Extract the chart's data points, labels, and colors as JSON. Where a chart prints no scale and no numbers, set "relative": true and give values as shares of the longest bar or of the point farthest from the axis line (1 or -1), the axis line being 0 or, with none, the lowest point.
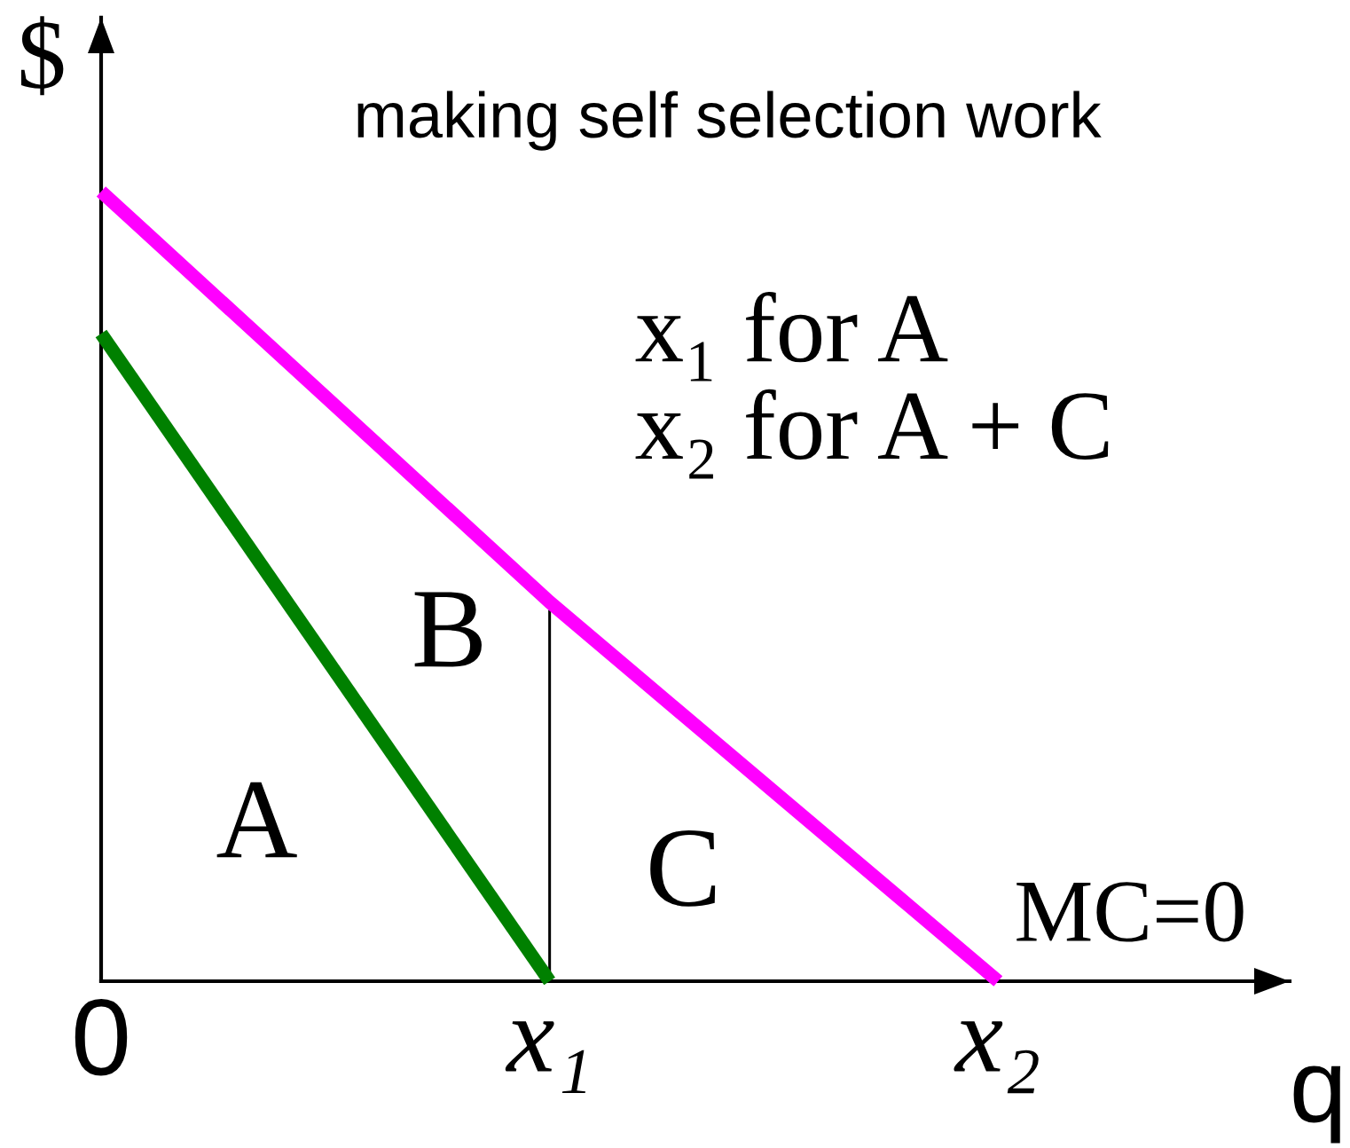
{
  "chart_data": {
    "type": "line",
    "title": "making self selection work",
    "xlabel": "q",
    "ylabel": "$",
    "relative": true,
    "categories": [
      "0",
      "x₁",
      "x₂"
    ],
    "series": [
      {
        "color": "#008000",
        "values": [
          0.82,
          0,
          null
        ]
      },
      {
        "color": "#ff00ff",
        "values": [
          1,
          0.48,
          0
        ]
      },
      {
        "type": "bar",
        "color": "#000000",
        "values": [
          null,
          0.47,
          null
        ]
      }
    ],
    "annotations": [
      "A",
      "B",
      "C",
      "MC=0",
      "x₁ for A",
      "x₂ for A + C"
    ]
  }
}
